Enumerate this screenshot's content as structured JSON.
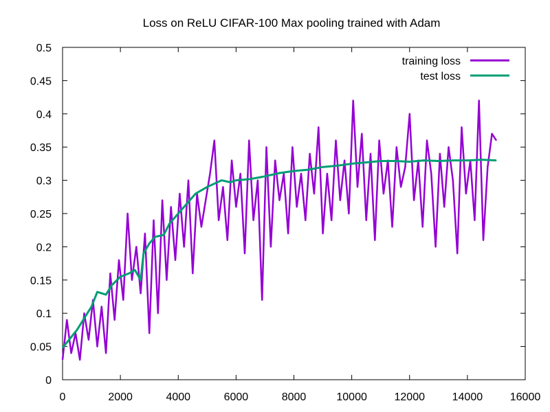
{
  "chart_data": {
    "type": "line",
    "title": "Loss on ReLU CIFAR-100 Max pooling trained with Adam",
    "xlabel": "",
    "ylabel": "",
    "xlim": [
      0,
      16000
    ],
    "ylim": [
      0,
      0.5
    ],
    "x_ticks": [
      "0",
      "2000",
      "4000",
      "6000",
      "8000",
      "10000",
      "12000",
      "14000",
      "16000"
    ],
    "y_ticks": [
      "0",
      "0.05",
      "0.1",
      "0.15",
      "0.2",
      "0.25",
      "0.3",
      "0.35",
      "0.4",
      "0.45",
      "0.5"
    ],
    "grid": false,
    "legend_position": "top-right",
    "series": [
      {
        "name": "training loss",
        "color": "#9400d3",
        "x": [
          0,
          150,
          300,
          450,
          600,
          750,
          900,
          1050,
          1200,
          1350,
          1500,
          1650,
          1800,
          1950,
          2100,
          2250,
          2400,
          2550,
          2700,
          2850,
          3000,
          3150,
          3300,
          3450,
          3600,
          3750,
          3900,
          4050,
          4200,
          4350,
          4500,
          4650,
          4800,
          4950,
          5100,
          5250,
          5400,
          5550,
          5700,
          5850,
          6000,
          6150,
          6300,
          6450,
          6600,
          6750,
          6900,
          7050,
          7200,
          7350,
          7500,
          7650,
          7800,
          7950,
          8100,
          8250,
          8400,
          8550,
          8700,
          8850,
          9000,
          9150,
          9300,
          9450,
          9600,
          9750,
          9900,
          10050,
          10200,
          10350,
          10500,
          10650,
          10800,
          10950,
          11100,
          11250,
          11400,
          11550,
          11700,
          11850,
          12000,
          12150,
          12300,
          12450,
          12600,
          12750,
          12900,
          13050,
          13200,
          13350,
          13500,
          13650,
          13800,
          13950,
          14100,
          14250,
          14400,
          14550,
          14700,
          14850,
          15000
        ],
        "values": [
          0.03,
          0.09,
          0.04,
          0.07,
          0.03,
          0.1,
          0.06,
          0.12,
          0.05,
          0.11,
          0.04,
          0.16,
          0.09,
          0.18,
          0.12,
          0.25,
          0.15,
          0.2,
          0.13,
          0.22,
          0.07,
          0.24,
          0.1,
          0.27,
          0.15,
          0.26,
          0.18,
          0.28,
          0.2,
          0.3,
          0.16,
          0.28,
          0.23,
          0.27,
          0.31,
          0.36,
          0.24,
          0.29,
          0.21,
          0.33,
          0.26,
          0.31,
          0.19,
          0.36,
          0.24,
          0.3,
          0.12,
          0.35,
          0.2,
          0.33,
          0.27,
          0.31,
          0.22,
          0.35,
          0.26,
          0.31,
          0.24,
          0.34,
          0.28,
          0.38,
          0.22,
          0.31,
          0.24,
          0.36,
          0.27,
          0.33,
          0.25,
          0.42,
          0.29,
          0.37,
          0.24,
          0.34,
          0.21,
          0.36,
          0.28,
          0.33,
          0.23,
          0.35,
          0.29,
          0.32,
          0.4,
          0.27,
          0.33,
          0.23,
          0.36,
          0.31,
          0.2,
          0.34,
          0.26,
          0.35,
          0.3,
          0.19,
          0.38,
          0.28,
          0.33,
          0.24,
          0.42,
          0.21,
          0.32,
          0.37,
          0.36
        ]
      },
      {
        "name": "test loss",
        "color": "#009e73",
        "x": [
          0,
          500,
          1000,
          1200,
          1500,
          1700,
          2000,
          2300,
          2500,
          2700,
          2800,
          3000,
          3200,
          3500,
          3700,
          4000,
          4300,
          4600,
          5000,
          5500,
          5800,
          6000,
          6500,
          7000,
          7500,
          8000,
          8500,
          9000,
          9500,
          10000,
          10500,
          11000,
          11500,
          12000,
          12500,
          13000,
          13500,
          14000,
          14500,
          15000
        ],
        "values": [
          0.048,
          0.075,
          0.11,
          0.132,
          0.128,
          0.142,
          0.155,
          0.16,
          0.165,
          0.15,
          0.19,
          0.205,
          0.215,
          0.218,
          0.235,
          0.25,
          0.265,
          0.28,
          0.29,
          0.3,
          0.297,
          0.3,
          0.302,
          0.306,
          0.311,
          0.314,
          0.316,
          0.32,
          0.322,
          0.325,
          0.327,
          0.329,
          0.329,
          0.328,
          0.33,
          0.329,
          0.33,
          0.33,
          0.331,
          0.33
        ]
      }
    ]
  }
}
